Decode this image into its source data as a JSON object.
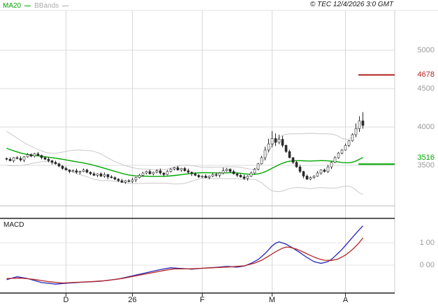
{
  "header": {
    "legend": [
      {
        "label": "MA20",
        "color": "#00a800"
      },
      {
        "label": "BBands",
        "color": "#aaaaaa"
      }
    ],
    "copyright": "© TEC 12/4/2026 3:0 GMT"
  },
  "price_axis": {
    "grid_labels": [
      {
        "text": "5000",
        "price": 5000
      },
      {
        "text": "4500",
        "price": 4500
      },
      {
        "text": "4000",
        "price": 4000
      },
      {
        "text": "3500",
        "price": 3500
      }
    ],
    "marker_labels": [
      {
        "text": "4678",
        "price": 4678,
        "color": "#b22222",
        "label_dy": -6
      },
      {
        "text": "3516",
        "price": 3516,
        "color": "#00a800",
        "label_dy": -15
      }
    ]
  },
  "macd_panel": {
    "label": "MACD",
    "axis_labels": [
      {
        "text": "1 00",
        "value": 100
      },
      {
        "text": "0 00",
        "value": 0
      }
    ]
  },
  "x_axis": {
    "ticks": [
      {
        "label": "D",
        "index": 17
      },
      {
        "label": "26",
        "index": 36
      },
      {
        "label": "F",
        "index": 56
      },
      {
        "label": "M",
        "index": 76
      },
      {
        "label": "A",
        "index": 97
      }
    ]
  },
  "chart_data": {
    "type": "candlestick",
    "title": "",
    "legend_position": "top-left",
    "grid": true,
    "price_gridlines": [
      5000,
      4500,
      4000,
      3500
    ],
    "macd_gridlines": [
      100,
      0
    ],
    "series": {
      "warmup_closes": [
        3950,
        3930,
        3900,
        3880,
        3850,
        3830,
        3800,
        3780,
        3760,
        3740,
        3720,
        3700,
        3680,
        3660,
        3640,
        3620,
        3610,
        3600,
        3595,
        3590
      ],
      "closes": [
        3580,
        3560,
        3600,
        3590,
        3570,
        3610,
        3640,
        3620,
        3650,
        3630,
        3600,
        3580,
        3560,
        3540,
        3520,
        3490,
        3460,
        3440,
        3420,
        3430,
        3410,
        3420,
        3440,
        3410,
        3390,
        3370,
        3390,
        3360,
        3380,
        3350,
        3340,
        3320,
        3300,
        3280,
        3300,
        3290,
        3310,
        3340,
        3370,
        3400,
        3420,
        3390,
        3410,
        3430,
        3400,
        3380,
        3420,
        3450,
        3470,
        3440,
        3460,
        3430,
        3410,
        3390,
        3370,
        3350,
        3360,
        3340,
        3360,
        3380,
        3370,
        3400,
        3430,
        3450,
        3420,
        3390,
        3370,
        3350,
        3330,
        3360,
        3400,
        3450,
        3520,
        3600,
        3700,
        3780,
        3850,
        3800,
        3840,
        3760,
        3680,
        3600,
        3540,
        3480,
        3420,
        3360,
        3320,
        3340,
        3360,
        3400,
        3440,
        3420,
        3480,
        3540,
        3600,
        3660,
        3700,
        3760,
        3820,
        3900,
        3980,
        4080,
        4020
      ],
      "wick_up_pattern": [
        12,
        24,
        8,
        18,
        28,
        10,
        20,
        15
      ],
      "wick_dn_pattern": [
        16,
        8,
        22,
        12,
        20,
        28,
        10,
        14
      ],
      "extra_wicks": {
        "62": 20,
        "74": 35,
        "75": 50,
        "76": 70,
        "77": 55,
        "78": 40,
        "79": 30,
        "100": 40,
        "101": 50,
        "102": 95
      }
    },
    "overlays": {
      "ma20_period": 20,
      "bollinger_k": 2,
      "colors": {
        "ma20": "#00a800",
        "bbands": "#c9c9c9"
      }
    },
    "levels": [
      {
        "price": 4678,
        "color": "#b22222"
      },
      {
        "price": 3516,
        "color": "#00a800"
      }
    ],
    "macd": {
      "line_color": "#2424b4",
      "signal_color": "#b42424",
      "macd_keypoints": [
        [
          0,
          -65
        ],
        [
          3,
          -52
        ],
        [
          6,
          -60
        ],
        [
          10,
          -78
        ],
        [
          14,
          -85
        ],
        [
          18,
          -80
        ],
        [
          22,
          -76
        ],
        [
          27,
          -72
        ],
        [
          32,
          -62
        ],
        [
          36,
          -48
        ],
        [
          40,
          -34
        ],
        [
          44,
          -20
        ],
        [
          47,
          -12
        ],
        [
          50,
          -15
        ],
        [
          53,
          -18
        ],
        [
          56,
          -14
        ],
        [
          60,
          -10
        ],
        [
          63,
          -6
        ],
        [
          66,
          -9
        ],
        [
          68,
          -4
        ],
        [
          70,
          8
        ],
        [
          72,
          25
        ],
        [
          74,
          52
        ],
        [
          76,
          86
        ],
        [
          77,
          98
        ],
        [
          78,
          104
        ],
        [
          80,
          94
        ],
        [
          82,
          76
        ],
        [
          84,
          56
        ],
        [
          86,
          34
        ],
        [
          88,
          16
        ],
        [
          90,
          8
        ],
        [
          92,
          16
        ],
        [
          93,
          26
        ],
        [
          94,
          40
        ],
        [
          95,
          55
        ],
        [
          96,
          70
        ],
        [
          97,
          88
        ],
        [
          98,
          106
        ],
        [
          99,
          124
        ],
        [
          100,
          142
        ],
        [
          101,
          159
        ],
        [
          102,
          176
        ]
      ],
      "signal_keypoints": [
        [
          0,
          -60
        ],
        [
          4,
          -58
        ],
        [
          8,
          -64
        ],
        [
          12,
          -74
        ],
        [
          16,
          -80
        ],
        [
          20,
          -77
        ],
        [
          24,
          -74
        ],
        [
          28,
          -70
        ],
        [
          33,
          -60
        ],
        [
          37,
          -48
        ],
        [
          41,
          -36
        ],
        [
          45,
          -24
        ],
        [
          48,
          -17
        ],
        [
          52,
          -17
        ],
        [
          56,
          -14
        ],
        [
          60,
          -11
        ],
        [
          64,
          -8
        ],
        [
          68,
          -3
        ],
        [
          71,
          9
        ],
        [
          73,
          22
        ],
        [
          75,
          40
        ],
        [
          77,
          60
        ],
        [
          79,
          76
        ],
        [
          80,
          81
        ],
        [
          81,
          80
        ],
        [
          83,
          72
        ],
        [
          85,
          58
        ],
        [
          87,
          43
        ],
        [
          89,
          30
        ],
        [
          91,
          22
        ],
        [
          93,
          21
        ],
        [
          95,
          28
        ],
        [
          97,
          45
        ],
        [
          99,
          70
        ],
        [
          100,
          85
        ],
        [
          101,
          102
        ],
        [
          102,
          122
        ]
      ]
    }
  }
}
